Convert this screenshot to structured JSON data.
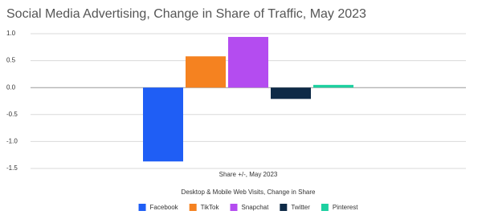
{
  "chart_data": {
    "type": "bar",
    "title": "Social Media Advertising, Change in Share of Traffic, May 2023",
    "categories": [
      "Share +/-, May 2023"
    ],
    "legend_title": "Desktop & Mobile Web Visits, Change in Share",
    "series": [
      {
        "name": "Facebook",
        "color": "#1f5ef5",
        "values": [
          -1.37
        ]
      },
      {
        "name": "TikTok",
        "color": "#f58220",
        "values": [
          0.58
        ]
      },
      {
        "name": "Snapchat",
        "color": "#b44cf0",
        "values": [
          0.94
        ]
      },
      {
        "name": "Twitter",
        "color": "#0e2a47",
        "values": [
          -0.21
        ]
      },
      {
        "name": "Pinterest",
        "color": "#1dd0a0",
        "values": [
          0.05
        ]
      }
    ],
    "ylim": [
      -1.5,
      1.0
    ],
    "yticks": [
      {
        "value": 1.0,
        "label": "1.0"
      },
      0.5,
      {
        "value": 0.0,
        "label": "0.0"
      },
      -0.5,
      {
        "value": -1.0,
        "label": "-1.0"
      },
      -1.5
    ],
    "grid": true,
    "legend": "bottom"
  }
}
